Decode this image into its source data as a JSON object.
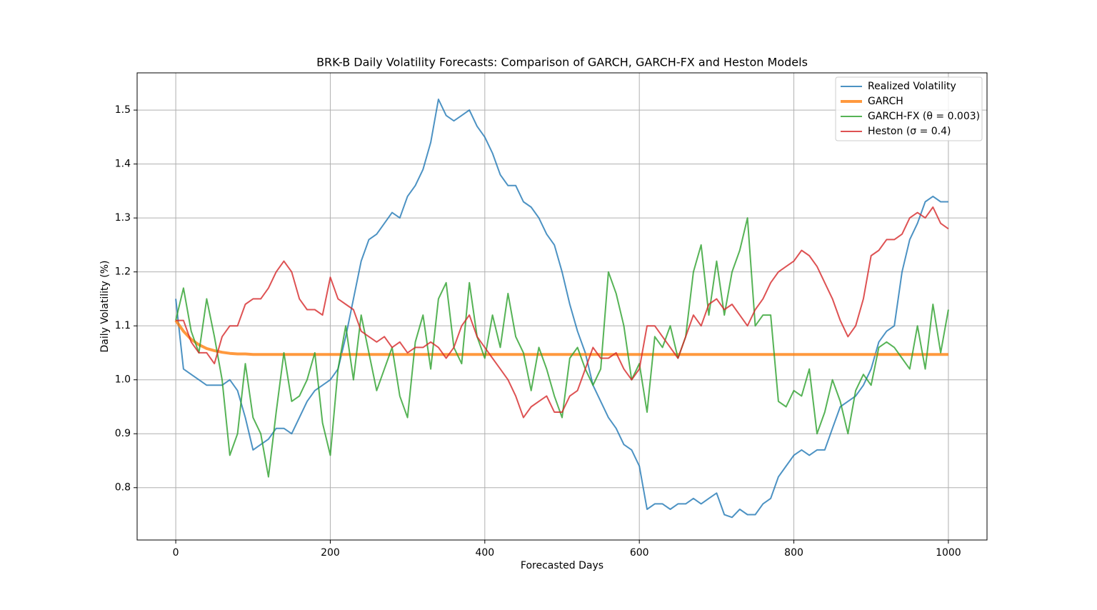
{
  "chart_data": {
    "type": "line",
    "title": "BRK-B Daily Volatility Forecasts: Comparison of GARCH, GARCH-FX and Heston Models",
    "xlabel": "Forecasted Days",
    "ylabel": "Daily Volatility (%)",
    "x": [
      0,
      10,
      20,
      30,
      40,
      50,
      60,
      70,
      80,
      90,
      100,
      110,
      120,
      130,
      140,
      150,
      160,
      170,
      180,
      190,
      200,
      210,
      220,
      230,
      240,
      250,
      260,
      270,
      280,
      290,
      300,
      310,
      320,
      330,
      340,
      350,
      360,
      370,
      380,
      390,
      400,
      410,
      420,
      430,
      440,
      450,
      460,
      470,
      480,
      490,
      500,
      510,
      520,
      530,
      540,
      550,
      560,
      570,
      580,
      590,
      600,
      610,
      620,
      630,
      640,
      650,
      660,
      670,
      680,
      690,
      700,
      710,
      720,
      730,
      740,
      750,
      760,
      770,
      780,
      790,
      800,
      810,
      820,
      830,
      840,
      850,
      860,
      870,
      880,
      890,
      900,
      910,
      920,
      930,
      940,
      950,
      960,
      970,
      980,
      990,
      1000
    ],
    "series": [
      {
        "name": "Realized Volatility",
        "color": "#1f77b4",
        "width": 2,
        "values": [
          1.15,
          1.02,
          1.01,
          1.0,
          0.99,
          0.99,
          0.99,
          1.0,
          0.98,
          0.93,
          0.87,
          0.88,
          0.89,
          0.91,
          0.91,
          0.9,
          0.93,
          0.96,
          0.98,
          0.99,
          1.0,
          1.02,
          1.08,
          1.15,
          1.22,
          1.26,
          1.27,
          1.29,
          1.31,
          1.3,
          1.34,
          1.36,
          1.39,
          1.44,
          1.52,
          1.49,
          1.48,
          1.49,
          1.5,
          1.47,
          1.45,
          1.42,
          1.38,
          1.36,
          1.36,
          1.33,
          1.32,
          1.3,
          1.27,
          1.25,
          1.2,
          1.14,
          1.09,
          1.05,
          0.99,
          0.96,
          0.93,
          0.91,
          0.88,
          0.87,
          0.84,
          0.76,
          0.77,
          0.77,
          0.76,
          0.77,
          0.77,
          0.78,
          0.77,
          0.78,
          0.79,
          0.75,
          0.745,
          0.76,
          0.75,
          0.75,
          0.77,
          0.78,
          0.82,
          0.84,
          0.86,
          0.87,
          0.86,
          0.87,
          0.87,
          0.91,
          0.95,
          0.96,
          0.97,
          0.99,
          1.02,
          1.07,
          1.09,
          1.1,
          1.2,
          1.26,
          1.29,
          1.33,
          1.34,
          1.33,
          1.33
        ]
      },
      {
        "name": "GARCH",
        "color": "#ff7f0e",
        "width": 4,
        "values": [
          1.11,
          1.09,
          1.075,
          1.065,
          1.058,
          1.054,
          1.051,
          1.049,
          1.048,
          1.048,
          1.047,
          1.047,
          1.047,
          1.047,
          1.047,
          1.047,
          1.047,
          1.047,
          1.047,
          1.047,
          1.047,
          1.047,
          1.047,
          1.047,
          1.047,
          1.047,
          1.047,
          1.047,
          1.047,
          1.047,
          1.047,
          1.047,
          1.047,
          1.047,
          1.047,
          1.047,
          1.047,
          1.047,
          1.047,
          1.047,
          1.047,
          1.047,
          1.047,
          1.047,
          1.047,
          1.047,
          1.047,
          1.047,
          1.047,
          1.047,
          1.047,
          1.047,
          1.047,
          1.047,
          1.047,
          1.047,
          1.047,
          1.047,
          1.047,
          1.047,
          1.047,
          1.047,
          1.047,
          1.047,
          1.047,
          1.047,
          1.047,
          1.047,
          1.047,
          1.047,
          1.047,
          1.047,
          1.047,
          1.047,
          1.047,
          1.047,
          1.047,
          1.047,
          1.047,
          1.047,
          1.047,
          1.047,
          1.047,
          1.047,
          1.047,
          1.047,
          1.047,
          1.047,
          1.047,
          1.047,
          1.047,
          1.047,
          1.047,
          1.047,
          1.047,
          1.047,
          1.047,
          1.047,
          1.047,
          1.047,
          1.047
        ]
      },
      {
        "name": "GARCH-FX (θ = 0.003)",
        "color": "#2ca02c",
        "width": 2,
        "values": [
          1.11,
          1.17,
          1.09,
          1.05,
          1.15,
          1.08,
          1.0,
          0.86,
          0.9,
          1.03,
          0.93,
          0.9,
          0.82,
          0.94,
          1.05,
          0.96,
          0.97,
          1.0,
          1.05,
          0.92,
          0.86,
          1.02,
          1.1,
          1.0,
          1.12,
          1.05,
          0.98,
          1.02,
          1.06,
          0.97,
          0.93,
          1.07,
          1.12,
          1.02,
          1.15,
          1.18,
          1.06,
          1.03,
          1.18,
          1.08,
          1.04,
          1.12,
          1.06,
          1.16,
          1.08,
          1.05,
          0.98,
          1.06,
          1.02,
          0.97,
          0.93,
          1.04,
          1.06,
          1.02,
          0.99,
          1.02,
          1.2,
          1.16,
          1.1,
          1.0,
          1.03,
          0.94,
          1.08,
          1.06,
          1.1,
          1.04,
          1.08,
          1.2,
          1.25,
          1.12,
          1.22,
          1.12,
          1.2,
          1.24,
          1.3,
          1.1,
          1.12,
          1.12,
          0.96,
          0.95,
          0.98,
          0.97,
          1.02,
          0.9,
          0.94,
          1.0,
          0.96,
          0.9,
          0.98,
          1.01,
          0.99,
          1.06,
          1.07,
          1.06,
          1.04,
          1.02,
          1.1,
          1.02,
          1.14,
          1.05,
          1.13
        ]
      },
      {
        "name": "Heston (σ = 0.4)",
        "color": "#d62728",
        "width": 2,
        "values": [
          1.11,
          1.11,
          1.07,
          1.05,
          1.05,
          1.03,
          1.08,
          1.1,
          1.1,
          1.14,
          1.15,
          1.15,
          1.17,
          1.2,
          1.22,
          1.2,
          1.15,
          1.13,
          1.13,
          1.12,
          1.19,
          1.15,
          1.14,
          1.13,
          1.09,
          1.08,
          1.07,
          1.08,
          1.06,
          1.07,
          1.05,
          1.06,
          1.06,
          1.07,
          1.06,
          1.04,
          1.06,
          1.1,
          1.12,
          1.08,
          1.06,
          1.04,
          1.02,
          1.0,
          0.97,
          0.93,
          0.95,
          0.96,
          0.97,
          0.94,
          0.94,
          0.97,
          0.98,
          1.02,
          1.06,
          1.04,
          1.04,
          1.05,
          1.02,
          1.0,
          1.02,
          1.1,
          1.1,
          1.08,
          1.06,
          1.04,
          1.08,
          1.12,
          1.1,
          1.14,
          1.15,
          1.13,
          1.14,
          1.12,
          1.1,
          1.13,
          1.15,
          1.18,
          1.2,
          1.21,
          1.22,
          1.24,
          1.23,
          1.21,
          1.18,
          1.15,
          1.11,
          1.08,
          1.1,
          1.15,
          1.23,
          1.24,
          1.26,
          1.26,
          1.27,
          1.3,
          1.31,
          1.3,
          1.32,
          1.29,
          1.28
        ]
      }
    ],
    "xlim": [
      -50,
      1050
    ],
    "ylim": [
      0.703,
      1.569
    ],
    "xticks": [
      0,
      200,
      400,
      600,
      800,
      1000
    ],
    "yticks": [
      0.8,
      0.9,
      {
        "value": 1,
        "label": "1.0"
      },
      1.1,
      1.2,
      1.3,
      1.4,
      1.5
    ],
    "grid": true,
    "legend": "upper-right"
  }
}
